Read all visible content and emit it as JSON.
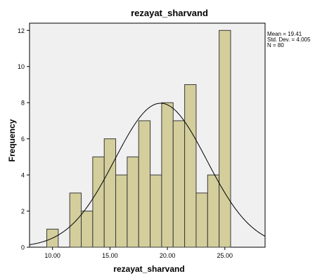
{
  "chart_data": {
    "type": "bar",
    "title": "rezayat_sharvand",
    "xlabel": "rezayat_sharvand",
    "ylabel": "Frequency",
    "xlim": [
      8,
      28.5
    ],
    "ylim": [
      0,
      12.4
    ],
    "xticks": [
      "10.00",
      "15.00",
      "20.00",
      "25.00"
    ],
    "xtick_values": [
      10,
      15,
      20,
      25
    ],
    "yticks": [
      "0",
      "2",
      "4",
      "6",
      "8",
      "10",
      "12"
    ],
    "ytick_values": [
      0,
      2,
      4,
      6,
      8,
      10,
      12
    ],
    "bin_width": 1,
    "bins": [
      {
        "x": 10,
        "count": 1
      },
      {
        "x": 12,
        "count": 3
      },
      {
        "x": 13,
        "count": 2
      },
      {
        "x": 14,
        "count": 5
      },
      {
        "x": 15,
        "count": 6
      },
      {
        "x": 16,
        "count": 4
      },
      {
        "x": 17,
        "count": 5
      },
      {
        "x": 18,
        "count": 7
      },
      {
        "x": 19,
        "count": 4
      },
      {
        "x": 20,
        "count": 8
      },
      {
        "x": 21,
        "count": 7
      },
      {
        "x": 22,
        "count": 9
      },
      {
        "x": 23,
        "count": 3
      },
      {
        "x": 24,
        "count": 4
      },
      {
        "x": 25,
        "count": 12
      }
    ],
    "normal_curve": {
      "mean": 19.41,
      "std_dev": 4.005,
      "n": 80
    },
    "stats_lines": [
      "Mean = 19.41",
      "Std. Dev. = 4.005",
      "N = 80"
    ],
    "grid": false,
    "legend": "none",
    "colors": {
      "bar_fill": "#d3ce9c",
      "bar_stroke": "#3a3a3a",
      "plot_bg": "#f0f0f0",
      "curve": "#000000"
    }
  }
}
